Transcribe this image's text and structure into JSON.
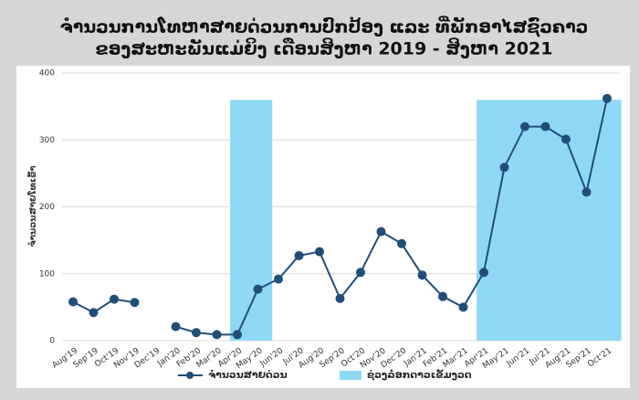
{
  "chart_data": {
    "type": "line",
    "title": [
      "ຈຳນວນການໂທຫາສາຍດ່ວນການປົກປ້ອງ ແລະ ທີ່ພັກອາໄສຊົ່ວຄາວ",
      "ຂອງສະຫະພັນແມ່ຍິງ ເດືອນສິງຫາ 2019 - ສິງຫາ 2021"
    ],
    "y_label": "ຈຳນວນສາຍໂທເຂົ້າ",
    "categories": [
      "Aug'19",
      "Sep'19",
      "Oct'19",
      "Nov'19",
      "Dec'19",
      "Jan'20",
      "Feb'20",
      "Mar'20",
      "Apr'20",
      "May'20",
      "Jun'20",
      "Jul'20",
      "Aug'20",
      "Sep'20",
      "Oct'20",
      "Nov'20",
      "Dec'20",
      "Jan'21",
      "Feb'21",
      "Mar'21",
      "Apr'21",
      "May'21",
      "Jun'21",
      "Jul'21",
      "Aug'21",
      "Sep'21",
      "Oct'21"
    ],
    "series": [
      {
        "name": "ຈຳນວນສາຍດ່ວນ",
        "color": "#1f4e79",
        "values": [
          58,
          42,
          62,
          57,
          null,
          21,
          12,
          9,
          9,
          77,
          92,
          127,
          133,
          63,
          102,
          163,
          145,
          98,
          66,
          50,
          102,
          259,
          320,
          320,
          301,
          222,
          362
        ]
      }
    ],
    "shaded_regions": {
      "name": "ຊ່ວງລ໋ອກດາວເຂັ້ມງວດ",
      "color": "#8fd8f5",
      "periods": [
        {
          "start": "Apr'20",
          "end": "May'20",
          "range": [
            0,
            360
          ]
        },
        {
          "start": "Apr'21",
          "end": "Oct'21",
          "range": [
            0,
            360
          ]
        }
      ]
    },
    "ylim": [
      0,
      400
    ],
    "yticks": [
      0,
      100,
      200,
      300,
      400
    ],
    "grid": true
  }
}
